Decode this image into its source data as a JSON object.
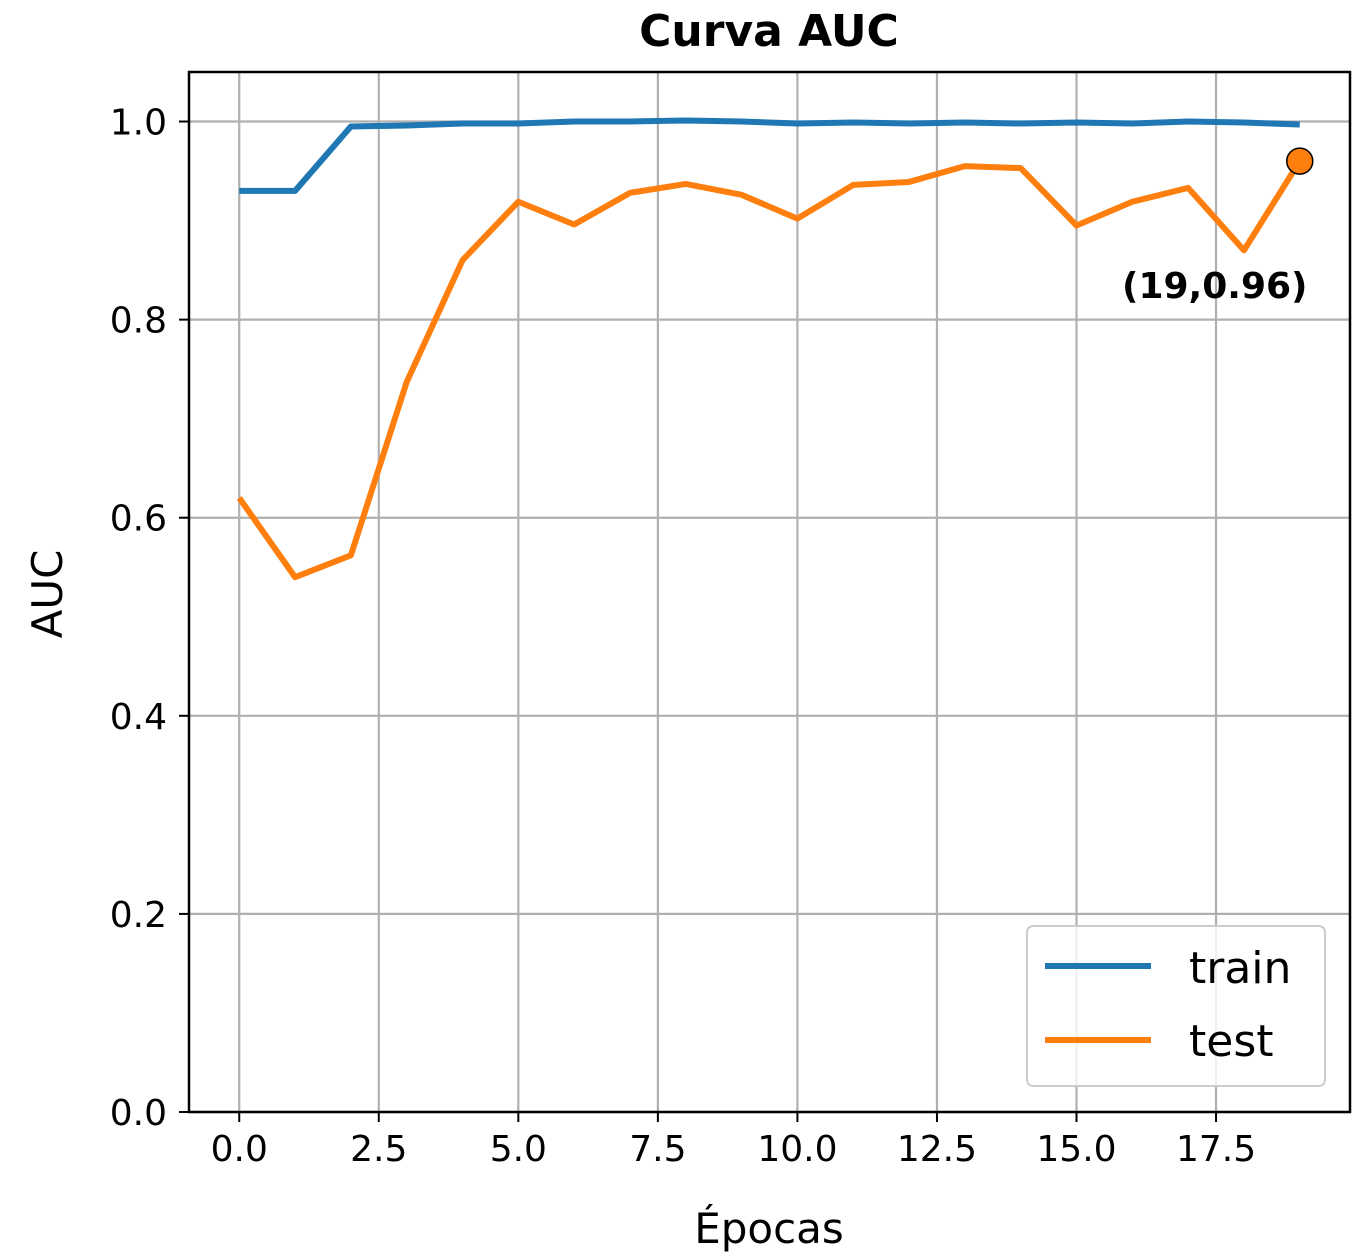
{
  "chart_data": {
    "type": "line",
    "title": "Curva AUC",
    "xlabel": "Épocas",
    "ylabel": "AUC",
    "xlim": [
      -0.9,
      19.9
    ],
    "ylim": [
      0.0,
      1.05
    ],
    "xticks": [
      "0.0",
      "2.5",
      "5.0",
      "7.5",
      "10.0",
      "12.5",
      "15.0",
      "17.5"
    ],
    "yticks": [
      "0.0",
      "0.2",
      "0.4",
      "0.6",
      "0.8",
      "1.0"
    ],
    "grid": true,
    "legend_position": "lower-right",
    "x": [
      0,
      1,
      2,
      3,
      4,
      5,
      6,
      7,
      8,
      9,
      10,
      11,
      12,
      13,
      14,
      15,
      16,
      17,
      18,
      19
    ],
    "series": [
      {
        "name": "train",
        "color": "#1f77b4",
        "values": [
          0.93,
          0.93,
          0.995,
          0.996,
          0.998,
          0.998,
          1.0,
          1.0,
          1.001,
          1.0,
          0.998,
          0.999,
          0.998,
          0.999,
          0.998,
          0.999,
          0.998,
          1.0,
          0.999,
          0.997
        ]
      },
      {
        "name": "test",
        "color": "#ff7f0e",
        "values": [
          0.62,
          0.54,
          0.562,
          0.737,
          0.86,
          0.919,
          0.896,
          0.928,
          0.937,
          0.926,
          0.902,
          0.936,
          0.939,
          0.955,
          0.953,
          0.895,
          0.919,
          0.933,
          0.87,
          0.96
        ]
      }
    ],
    "annotation": {
      "text": "(19,0.96)",
      "x": 19,
      "y": 0.96,
      "marker_color": "#ff7f0e"
    }
  }
}
